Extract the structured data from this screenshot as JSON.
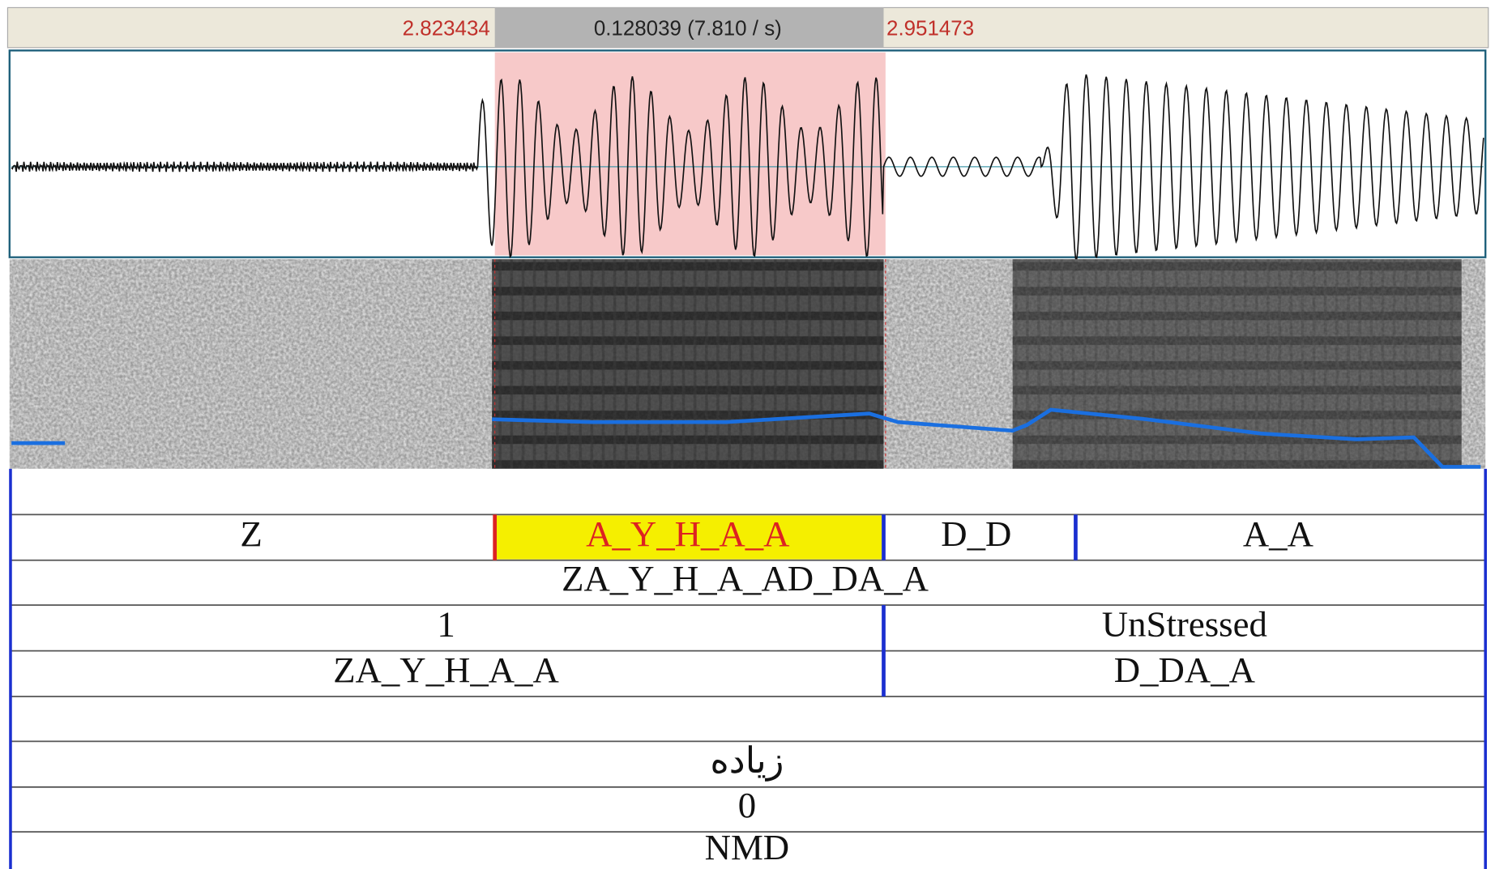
{
  "header": {
    "start_time": "2.823434",
    "selection": "0.128039 (7.810 / s)",
    "end_time": "2.951473"
  },
  "tiers": [
    {
      "intervals": [
        "Z",
        "A_Y_H_A_A",
        "D_D",
        "A_A"
      ]
    },
    {
      "intervals": [
        "ZA_Y_H_A_AD_DA_A"
      ]
    },
    {
      "intervals": [
        "1",
        "UnStressed"
      ]
    },
    {
      "intervals": [
        "ZA_Y_H_A_A",
        "D_DA_A"
      ]
    },
    {
      "intervals": [
        "زياده"
      ]
    },
    {
      "intervals": [
        "0"
      ]
    },
    {
      "intervals": [
        "NMD"
      ]
    }
  ]
}
